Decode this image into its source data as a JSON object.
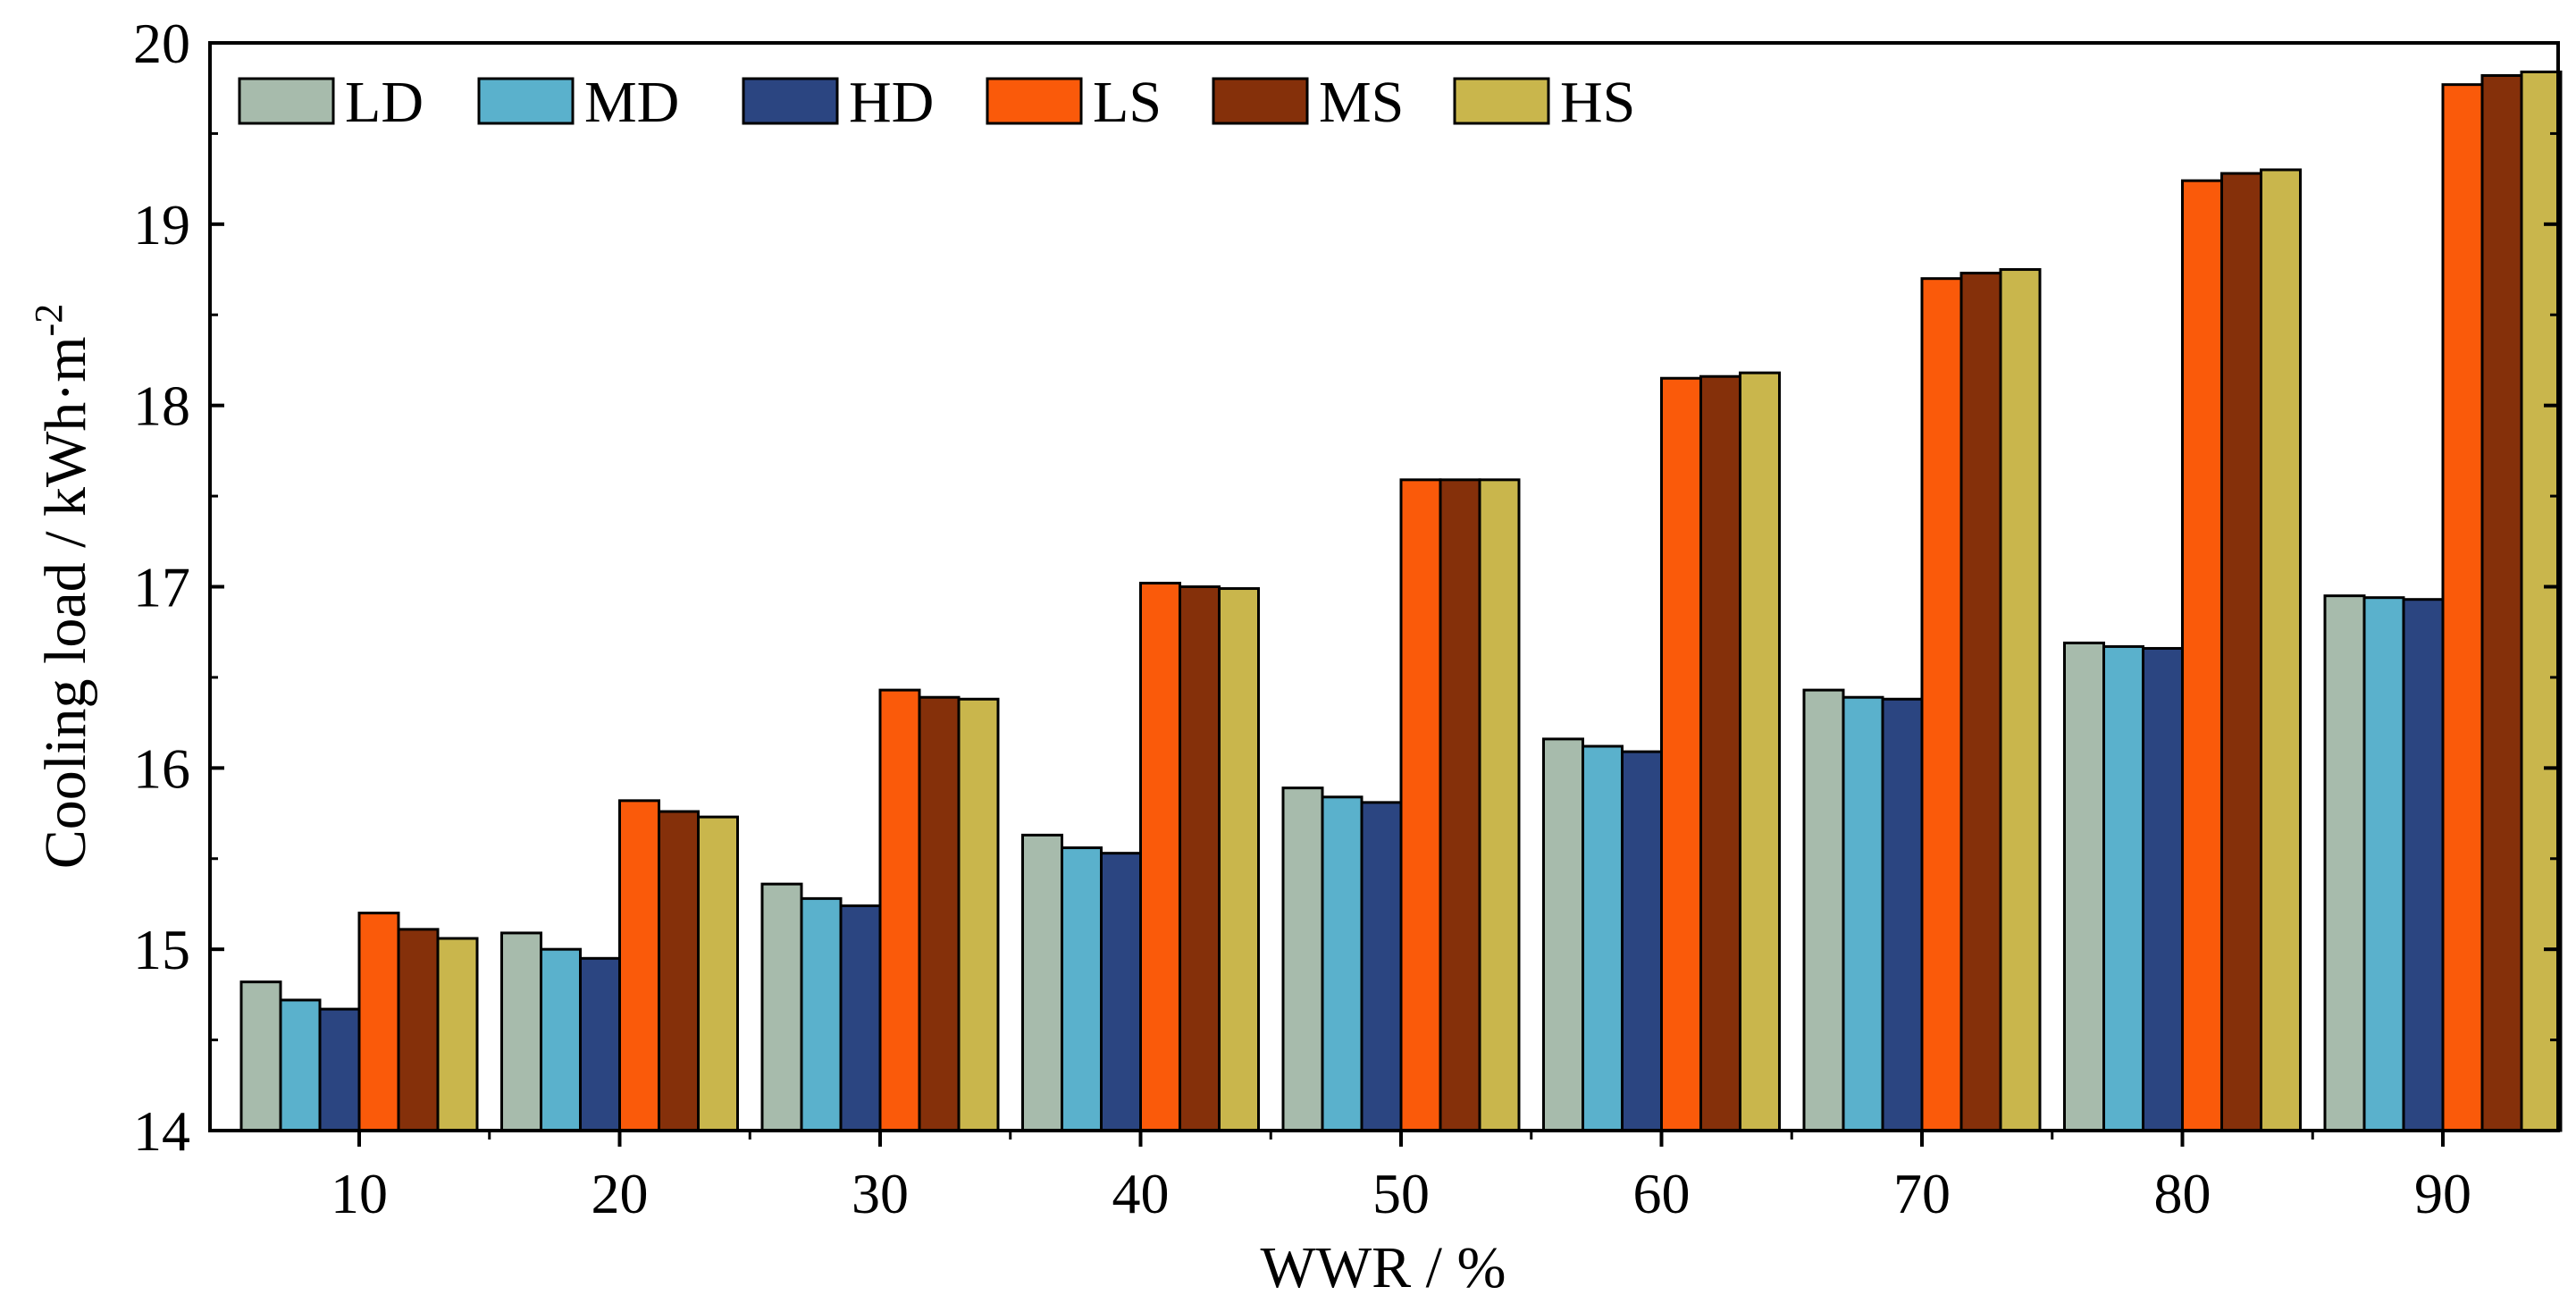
{
  "chart_data": {
    "type": "bar",
    "title": "",
    "xlabel": "WWR / %",
    "ylabel_main": "Cooling load / kWh·m",
    "ylabel_sup": "-2",
    "ylim": [
      14,
      20
    ],
    "yticks": [
      14,
      15,
      16,
      17,
      18,
      19,
      20
    ],
    "categories": [
      "10",
      "20",
      "30",
      "40",
      "50",
      "60",
      "70",
      "80",
      "90"
    ],
    "legend_position": "top-left",
    "series": [
      {
        "name": "LD",
        "color": "#a7bbac",
        "values": [
          14.82,
          15.09,
          15.36,
          15.63,
          15.89,
          16.16,
          16.43,
          16.69,
          16.95
        ]
      },
      {
        "name": "MD",
        "color": "#5ab1cc",
        "values": [
          14.72,
          15.0,
          15.28,
          15.56,
          15.84,
          16.12,
          16.39,
          16.67,
          16.94
        ]
      },
      {
        "name": "HD",
        "color": "#2b4581",
        "values": [
          14.67,
          14.95,
          15.24,
          15.53,
          15.81,
          16.09,
          16.38,
          16.66,
          16.93
        ]
      },
      {
        "name": "LS",
        "color": "#fa5a0a",
        "values": [
          15.2,
          15.82,
          16.43,
          17.02,
          17.59,
          18.15,
          18.7,
          19.24,
          19.77
        ]
      },
      {
        "name": "MS",
        "color": "#85300a",
        "values": [
          15.11,
          15.76,
          16.39,
          17.0,
          17.59,
          18.16,
          18.73,
          19.28,
          19.82
        ]
      },
      {
        "name": "HS",
        "color": "#c9b64c",
        "values": [
          15.06,
          15.73,
          16.38,
          16.99,
          17.59,
          18.18,
          18.75,
          19.3,
          19.84
        ]
      }
    ]
  }
}
